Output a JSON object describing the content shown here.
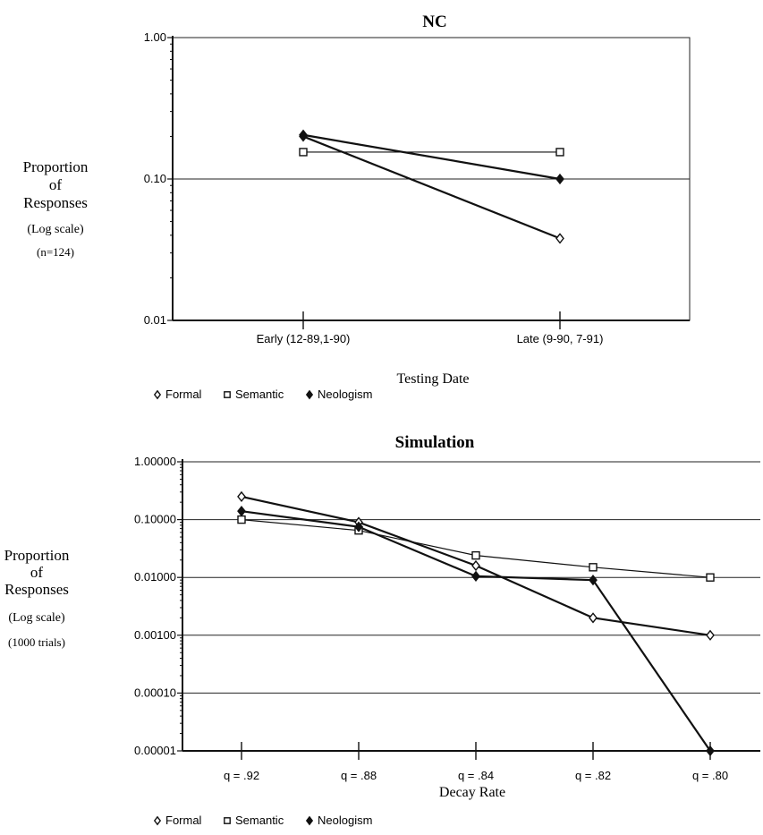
{
  "chart_data": [
    {
      "type": "line",
      "title": "NC",
      "ylabel_lines": [
        "Proportion",
        "of",
        "Responses",
        "(Log scale)",
        "(n=124)"
      ],
      "xlabel": "Testing Date",
      "yscale": "log",
      "ylim": [
        0.01,
        1.0
      ],
      "ytick_labels": [
        "1.00",
        "0.10",
        "0.01"
      ],
      "ytick_values": [
        1.0,
        0.1,
        0.01
      ],
      "grid": "horizontal",
      "categories": [
        "Early (12-89,1-90)",
        "Late (9-90, 7-91)"
      ],
      "series": [
        {
          "name": "Formal",
          "marker": "open-diamond",
          "values": [
            0.2,
            0.038
          ]
        },
        {
          "name": "Semantic",
          "marker": "open-square",
          "values": [
            0.155,
            0.155
          ]
        },
        {
          "name": "Neologism",
          "marker": "filled-diamond",
          "values": [
            0.205,
            0.1
          ]
        }
      ],
      "legend": {
        "placement": "below",
        "items": [
          "Formal",
          "Semantic",
          "Neologism"
        ]
      }
    },
    {
      "type": "line",
      "title": "Simulation",
      "ylabel_lines": [
        "Proportion",
        "of",
        "Responses",
        "(Log scale)",
        "(1000 trials)"
      ],
      "xlabel": "Decay Rate",
      "yscale": "log",
      "ylim": [
        1e-05,
        1.0
      ],
      "ytick_labels": [
        "1.00000",
        "0.10000",
        "0.01000",
        "0.00100",
        "0.00010",
        "0.00001"
      ],
      "ytick_values": [
        1.0,
        0.1,
        0.01,
        0.001,
        0.0001,
        1e-05
      ],
      "grid": "horizontal",
      "categories": [
        "q = .92",
        "q = .88",
        "q = .84",
        "q = .82",
        "q = .80"
      ],
      "series": [
        {
          "name": "Formal",
          "marker": "open-diamond",
          "values": [
            0.25,
            0.09,
            0.016,
            0.002,
            0.001
          ]
        },
        {
          "name": "Semantic",
          "marker": "open-square",
          "values": [
            0.1,
            0.065,
            0.024,
            0.015,
            0.01
          ]
        },
        {
          "name": "Neologism",
          "marker": "filled-diamond",
          "values": [
            0.14,
            0.075,
            0.0105,
            0.009,
            1e-05
          ]
        }
      ],
      "legend": {
        "placement": "below",
        "items": [
          "Formal",
          "Semantic",
          "Neologism"
        ]
      }
    }
  ]
}
